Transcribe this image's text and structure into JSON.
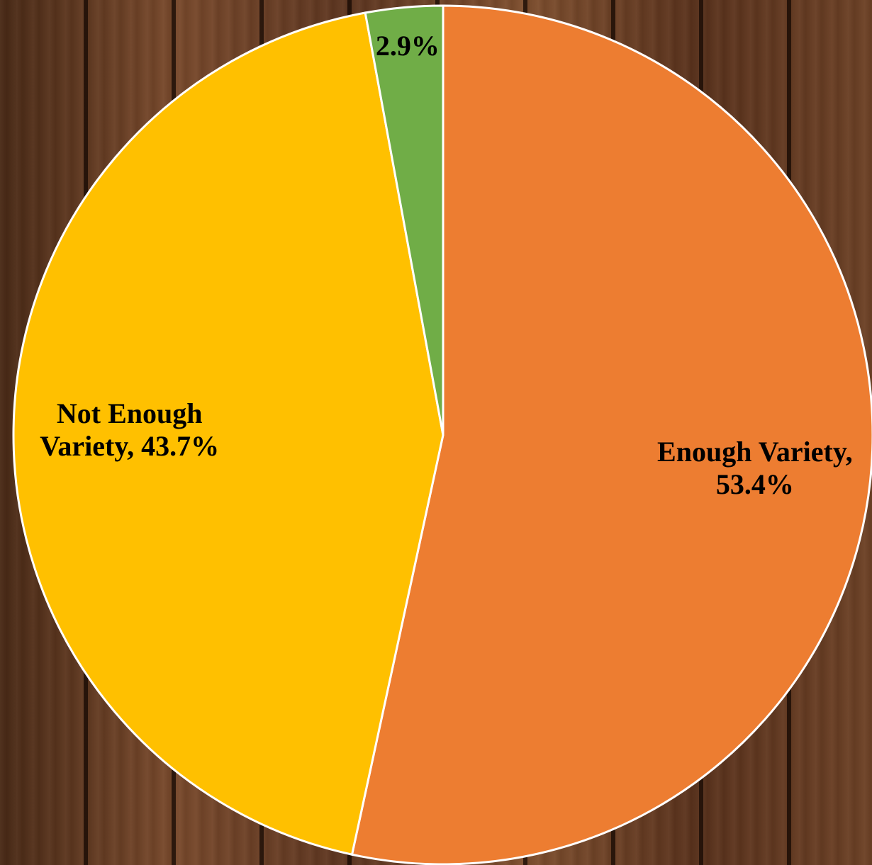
{
  "chart_data": {
    "type": "pie",
    "categories": [
      "Enough Variety",
      "Not Enough Variety",
      null
    ],
    "values": [
      53.4,
      43.7,
      2.9
    ],
    "value_labels": [
      "53.4%",
      "43.7%",
      "2.9%"
    ],
    "colors": [
      "#ed7d31",
      "#ffc000",
      "#70ad47"
    ]
  }
}
